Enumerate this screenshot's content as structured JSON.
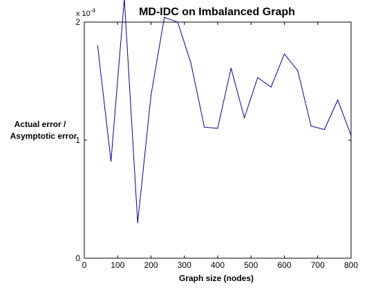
{
  "chart_data": {
    "type": "line",
    "title": "MD-IDC on Imbalanced Graph",
    "xlabel": "Graph size (nodes)",
    "ylabel_lines": [
      "Actual error /",
      "Asymptotic error"
    ],
    "y_multiplier_base": "x 10",
    "y_multiplier_exp": "-4",
    "xlim": [
      0,
      800
    ],
    "ylim": [
      0,
      0.0002
    ],
    "y_scaled_lim": [
      0,
      2
    ],
    "x_ticks": [
      0,
      100,
      200,
      300,
      400,
      500,
      600,
      700,
      800
    ],
    "y_ticks": [
      0,
      1,
      2
    ],
    "y_tick_labels": [
      "0",
      "1",
      "2"
    ],
    "grid": false,
    "legend": "none",
    "series": [
      {
        "color": "#00008b",
        "x": [
          40,
          80,
          120,
          160,
          200,
          240,
          280,
          320,
          360,
          400,
          440,
          480,
          520,
          560,
          600,
          640,
          680,
          720,
          760,
          800
        ],
        "y": [
          0.00018,
          8.2e-05,
          0.00022,
          3e-05,
          0.000138,
          0.000204,
          0.0002,
          0.000165,
          0.000111,
          0.00011,
          0.000161,
          0.000119,
          0.000153,
          0.000145,
          0.000173,
          0.000159,
          0.000112,
          0.000109,
          0.000134,
          0.000104
        ]
      }
    ]
  }
}
